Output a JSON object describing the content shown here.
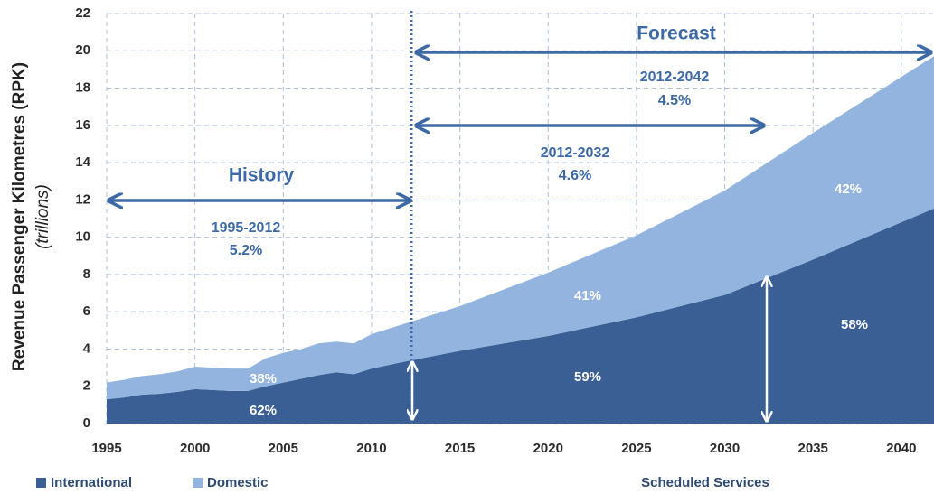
{
  "chart_data": {
    "type": "area",
    "y_label": "Revenue Passenger Kilometres (RPK)",
    "y_label_sub": "(trillions)",
    "x_label": "Scheduled Services",
    "x": [
      1995,
      1996,
      1997,
      1998,
      1999,
      2000,
      2001,
      2002,
      2003,
      2004,
      2005,
      2006,
      2007,
      2008,
      2009,
      2010,
      2011,
      2012,
      2015,
      2020,
      2025,
      2030,
      2035,
      2040,
      2042
    ],
    "series": [
      {
        "name": "International",
        "color": "#3a5f94",
        "values": [
          1.3,
          1.4,
          1.55,
          1.6,
          1.7,
          1.85,
          1.8,
          1.75,
          1.75,
          2.0,
          2.2,
          2.4,
          2.6,
          2.75,
          2.65,
          2.95,
          3.15,
          3.35,
          3.9,
          4.7,
          5.7,
          6.9,
          8.8,
          10.8,
          11.6
        ]
      },
      {
        "name": "Domestic",
        "color": "#93b4de",
        "values": [
          0.9,
          0.95,
          1.0,
          1.05,
          1.1,
          1.2,
          1.2,
          1.2,
          1.2,
          1.5,
          1.6,
          1.6,
          1.7,
          1.65,
          1.65,
          1.85,
          1.95,
          2.05,
          2.4,
          3.4,
          4.4,
          5.6,
          6.8,
          7.8,
          8.2
        ]
      }
    ],
    "stacked": true,
    "xlim": [
      1995,
      2042
    ],
    "xticks": [
      1995,
      2000,
      2005,
      2010,
      2015,
      2020,
      2025,
      2030,
      2035,
      2040
    ],
    "ylim": [
      0,
      22
    ],
    "yticks": [
      0,
      2,
      4,
      6,
      8,
      10,
      12,
      14,
      16,
      18,
      20,
      22
    ],
    "grid": true,
    "legend": "bottom-left",
    "annotations": [
      "History",
      "Forecast",
      "1995-2012",
      "5.2%",
      "2012-2032",
      "4.6%",
      "2012-2042",
      "4.5%",
      "62%",
      "38%",
      "59%",
      "41%",
      "58%",
      "42%"
    ]
  }
}
